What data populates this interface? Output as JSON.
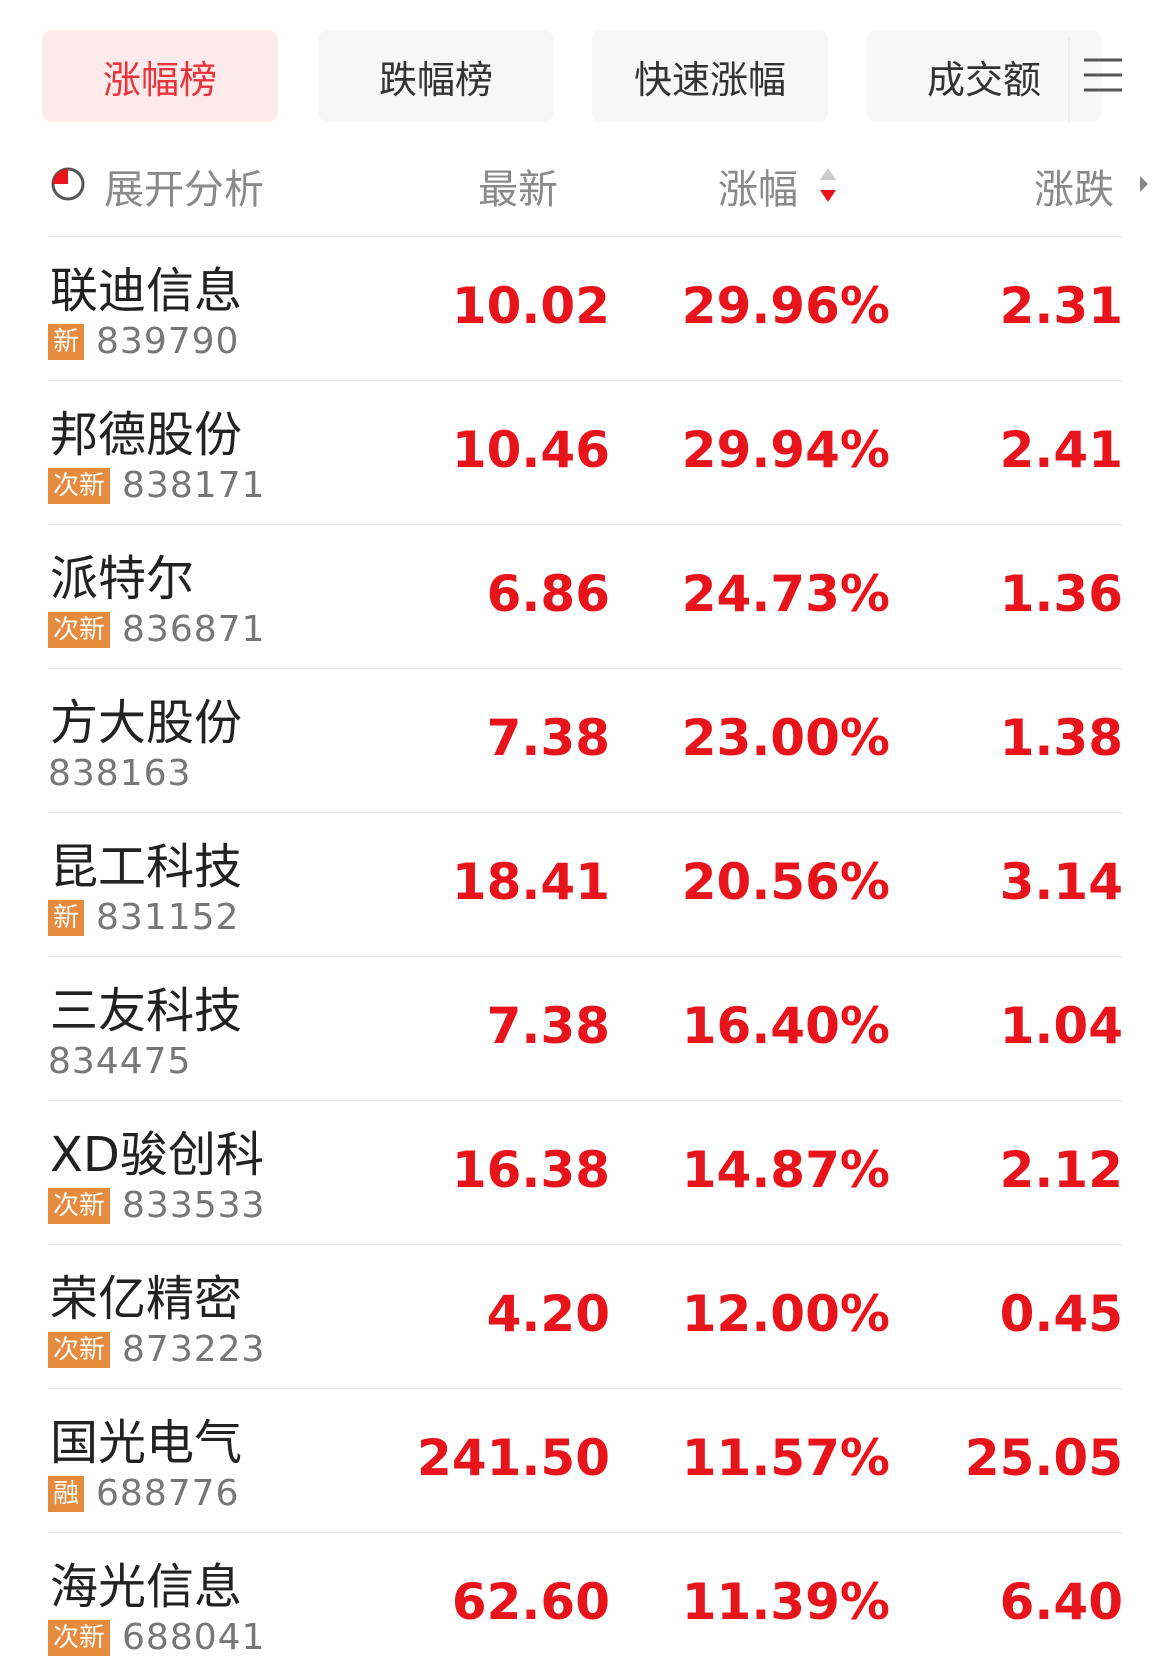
{
  "tabs": [
    "涨幅榜",
    "跌幅榜",
    "快速涨幅",
    "成交额"
  ],
  "header": {
    "analysis": "展开分析",
    "latest": "最新",
    "pct": "涨幅",
    "change": "涨跌"
  },
  "rows": [
    {
      "name": "联迪信息",
      "tag": "新",
      "code": "839790",
      "latest": "10.02",
      "pct": "29.96%",
      "change": "2.31"
    },
    {
      "name": "邦德股份",
      "tag": "次新",
      "code": "838171",
      "latest": "10.46",
      "pct": "29.94%",
      "change": "2.41"
    },
    {
      "name": "派特尔",
      "tag": "次新",
      "code": "836871",
      "latest": "6.86",
      "pct": "24.73%",
      "change": "1.36"
    },
    {
      "name": "方大股份",
      "code": "838163",
      "latest": "7.38",
      "pct": "23.00%",
      "change": "1.38"
    },
    {
      "name": "昆工科技",
      "tag": "新",
      "code": "831152",
      "latest": "18.41",
      "pct": "20.56%",
      "change": "3.14"
    },
    {
      "name": "三友科技",
      "code": "834475",
      "latest": "7.38",
      "pct": "16.40%",
      "change": "1.04"
    },
    {
      "name": "XD骏创科",
      "tag": "次新",
      "code": "833533",
      "latest": "16.38",
      "pct": "14.87%",
      "change": "2.12"
    },
    {
      "name": "荣亿精密",
      "tag": "次新",
      "code": "873223",
      "latest": "4.20",
      "pct": "12.00%",
      "change": "0.45"
    },
    {
      "name": "国光电气",
      "tag": "融",
      "code": "688776",
      "latest": "241.50",
      "pct": "11.57%",
      "change": "25.05"
    },
    {
      "name": "海光信息",
      "tag": "次新",
      "code": "688041",
      "latest": "62.60",
      "pct": "11.39%",
      "change": "6.40"
    }
  ]
}
